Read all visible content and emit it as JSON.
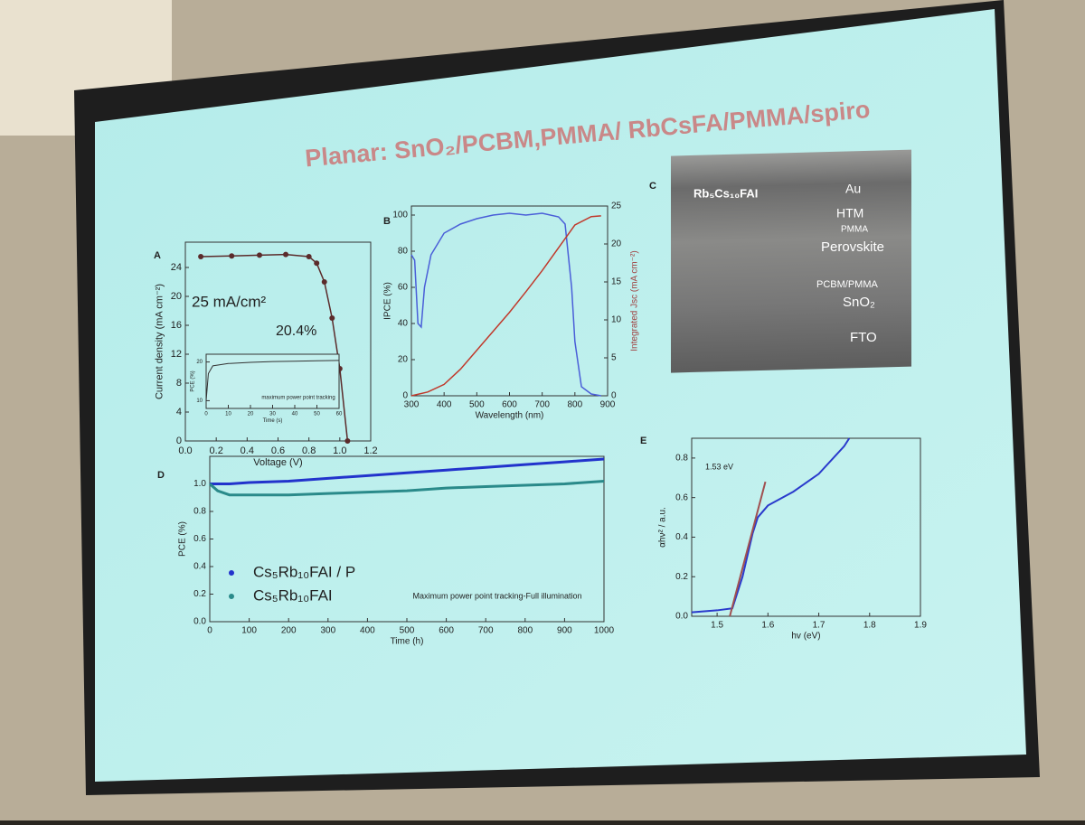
{
  "title": "Planar: SnO₂/PCBM,PMMA/ RbCsFA/PMMA/spiro",
  "chart_data": [
    {
      "type": "line",
      "panel": "A",
      "xlabel": "Voltage (V)",
      "ylabel": "Current density (mA cm⁻²)",
      "xlim": [
        0,
        1.2
      ],
      "xticks": [
        {
          "value": 0,
          "label": "0.0"
        },
        0.2,
        0.4,
        0.6,
        0.8,
        {
          "value": 1,
          "label": "1.0"
        },
        1.2
      ],
      "ylim": [
        0,
        27.5
      ],
      "yticks": [
        0,
        4,
        8,
        12,
        16,
        20,
        24
      ],
      "x": [
        0.1,
        0.3,
        0.48,
        0.65,
        0.8,
        0.85,
        0.9,
        0.95,
        1.0,
        1.05
      ],
      "series": [
        {
          "color": "#5b2b2b",
          "values": [
            25.5,
            25.6,
            25.7,
            25.8,
            25.5,
            24.6,
            22,
            17,
            10,
            0
          ]
        }
      ],
      "annotations": [
        "25 mA/cm²",
        "20.4%"
      ],
      "inset": {
        "type": "line",
        "xlabel": "Time (s)",
        "ylabel": "PCE (%)",
        "xlim": [
          0,
          60
        ],
        "xticks": [
          0,
          10,
          20,
          30,
          40,
          50,
          60
        ],
        "ylim": [
          8,
          22
        ],
        "yticks": [
          10,
          20
        ],
        "x": [
          0,
          1,
          3,
          10,
          20,
          30,
          40,
          50,
          60
        ],
        "series": [
          {
            "color": "#333333",
            "values": [
              10,
              17,
              19,
              19.6,
              19.9,
              20.1,
              20.2,
              20.3,
              20.4
            ]
          }
        ],
        "annotations": [
          "maximum power point tracking"
        ]
      }
    },
    {
      "type": "line",
      "panel": "B",
      "xlabel": "Wavelength (nm)",
      "ylabel": "IPCE (%)",
      "y2label": "Integrated Jsc (mA cm⁻²)",
      "xlim": [
        300,
        900
      ],
      "xticks": [
        300,
        400,
        500,
        600,
        700,
        800,
        900
      ],
      "ylim": [
        0,
        105
      ],
      "yticks": [
        0,
        20,
        40,
        60,
        80,
        100
      ],
      "y2lim": [
        0,
        25
      ],
      "y2ticks": [
        0,
        5,
        10,
        15,
        20,
        25
      ],
      "series": [
        {
          "color": "#4a5ed8",
          "x": [
            300,
            310,
            320,
            330,
            340,
            360,
            400,
            450,
            500,
            550,
            600,
            650,
            700,
            750,
            770,
            790,
            800,
            820,
            850,
            880
          ],
          "values": [
            78,
            75,
            40,
            38,
            60,
            78,
            90,
            95,
            98,
            100,
            101,
            100,
            101,
            99,
            95,
            60,
            30,
            5,
            1,
            0
          ]
        },
        {
          "color": "#c0392b",
          "axis": "y2",
          "x": [
            300,
            350,
            400,
            450,
            500,
            550,
            600,
            650,
            700,
            750,
            800,
            850,
            880
          ],
          "values": [
            0,
            0.5,
            1.5,
            3.5,
            6,
            8.5,
            11,
            13.7,
            16.5,
            19.5,
            22.5,
            23.6,
            23.7
          ]
        }
      ]
    },
    {
      "type": "line",
      "panel": "D",
      "xlabel": "Time (h)",
      "ylabel": "PCE (%)",
      "xlim": [
        0,
        1000
      ],
      "xticks": [
        0,
        100,
        200,
        300,
        400,
        500,
        600,
        700,
        800,
        900,
        1000
      ],
      "ylim": [
        0,
        1.2
      ],
      "yticks": [
        {
          "value": 0,
          "label": "0.0"
        },
        0.2,
        0.4,
        0.6,
        0.8,
        {
          "value": 1,
          "label": "1.0"
        }
      ],
      "x": [
        0,
        20,
        50,
        100,
        200,
        300,
        400,
        500,
        600,
        700,
        800,
        900,
        1000
      ],
      "series": [
        {
          "name": "Cs₅Rb₁₀FAI / P",
          "color": "#2233cc",
          "values": [
            1.0,
            1.0,
            1.0,
            1.01,
            1.02,
            1.04,
            1.06,
            1.08,
            1.1,
            1.12,
            1.14,
            1.16,
            1.18
          ]
        },
        {
          "name": "Cs₅Rb₁₀FAI",
          "color": "#2a8a8a",
          "values": [
            1.0,
            0.95,
            0.92,
            0.92,
            0.92,
            0.93,
            0.94,
            0.95,
            0.97,
            0.98,
            0.99,
            1.0,
            1.02
          ]
        }
      ],
      "annotations": [
        "Maximum power point tracking-Full illumination"
      ]
    },
    {
      "type": "line",
      "panel": "E",
      "xlabel": "hv (eV)",
      "ylabel": "αhν² / a.u.",
      "xlim": [
        1.45,
        1.9
      ],
      "xticks": [
        1.5,
        1.6,
        1.7,
        1.8,
        1.9
      ],
      "ylim": [
        0,
        0.9
      ],
      "yticks": [
        {
          "value": 0,
          "label": "0.0"
        },
        0.2,
        0.4,
        0.6,
        0.8
      ],
      "series": [
        {
          "color": "#2a3acc",
          "x": [
            1.45,
            1.5,
            1.53,
            1.55,
            1.57,
            1.58,
            1.6,
            1.65,
            1.7,
            1.75,
            1.76
          ],
          "values": [
            0.02,
            0.03,
            0.04,
            0.2,
            0.42,
            0.5,
            0.56,
            0.63,
            0.72,
            0.86,
            0.9
          ]
        },
        {
          "color": "#a05050",
          "x": [
            1.525,
            1.595
          ],
          "values": [
            0,
            0.68
          ]
        }
      ],
      "annotations": [
        "1.53 eV"
      ]
    }
  ],
  "panel_c": {
    "panel": "C",
    "caption": "Rb₅Cs₁₀FAI",
    "layers": [
      "Au",
      "HTM",
      "PMMA",
      "Perovskite",
      "PCBM/PMMA",
      "SnO₂",
      "FTO"
    ]
  }
}
